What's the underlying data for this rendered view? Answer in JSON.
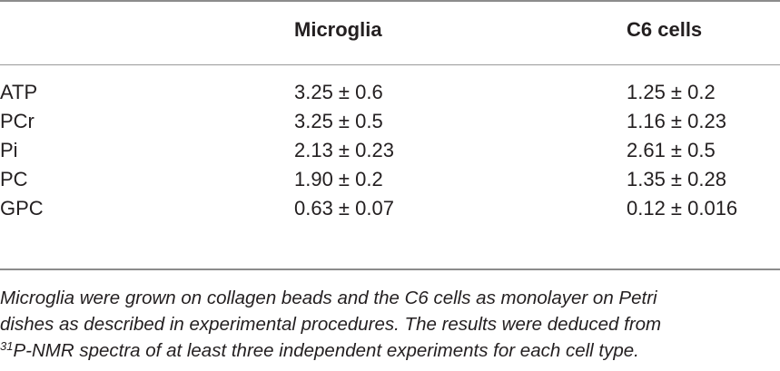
{
  "table": {
    "headers": [
      "",
      "Microglia",
      "C6 cells"
    ],
    "rows": [
      {
        "label": "ATP",
        "microglia": "3.25 ± 0.6",
        "c6": "1.25 ± 0.2"
      },
      {
        "label": "PCr",
        "microglia": "3.25 ± 0.5",
        "c6": "1.16 ± 0.23"
      },
      {
        "label": "Pi",
        "microglia": "2.13 ± 0.23",
        "c6": "2.61 ± 0.5"
      },
      {
        "label": "PC",
        "microglia": "1.90 ± 0.2",
        "c6": "1.35 ± 0.28"
      },
      {
        "label": "GPC",
        "microglia": "0.63 ± 0.07",
        "c6": "0.12 ± 0.016"
      }
    ]
  },
  "footnote": {
    "line1": "Microglia were grown on collagen beads and the C6 cells as monolayer on Petri",
    "line2": "dishes as described in experimental procedures. The results were deduced from",
    "line3_sup": "31",
    "line3": "P-NMR spectra of at least three independent experiments for each cell type."
  }
}
